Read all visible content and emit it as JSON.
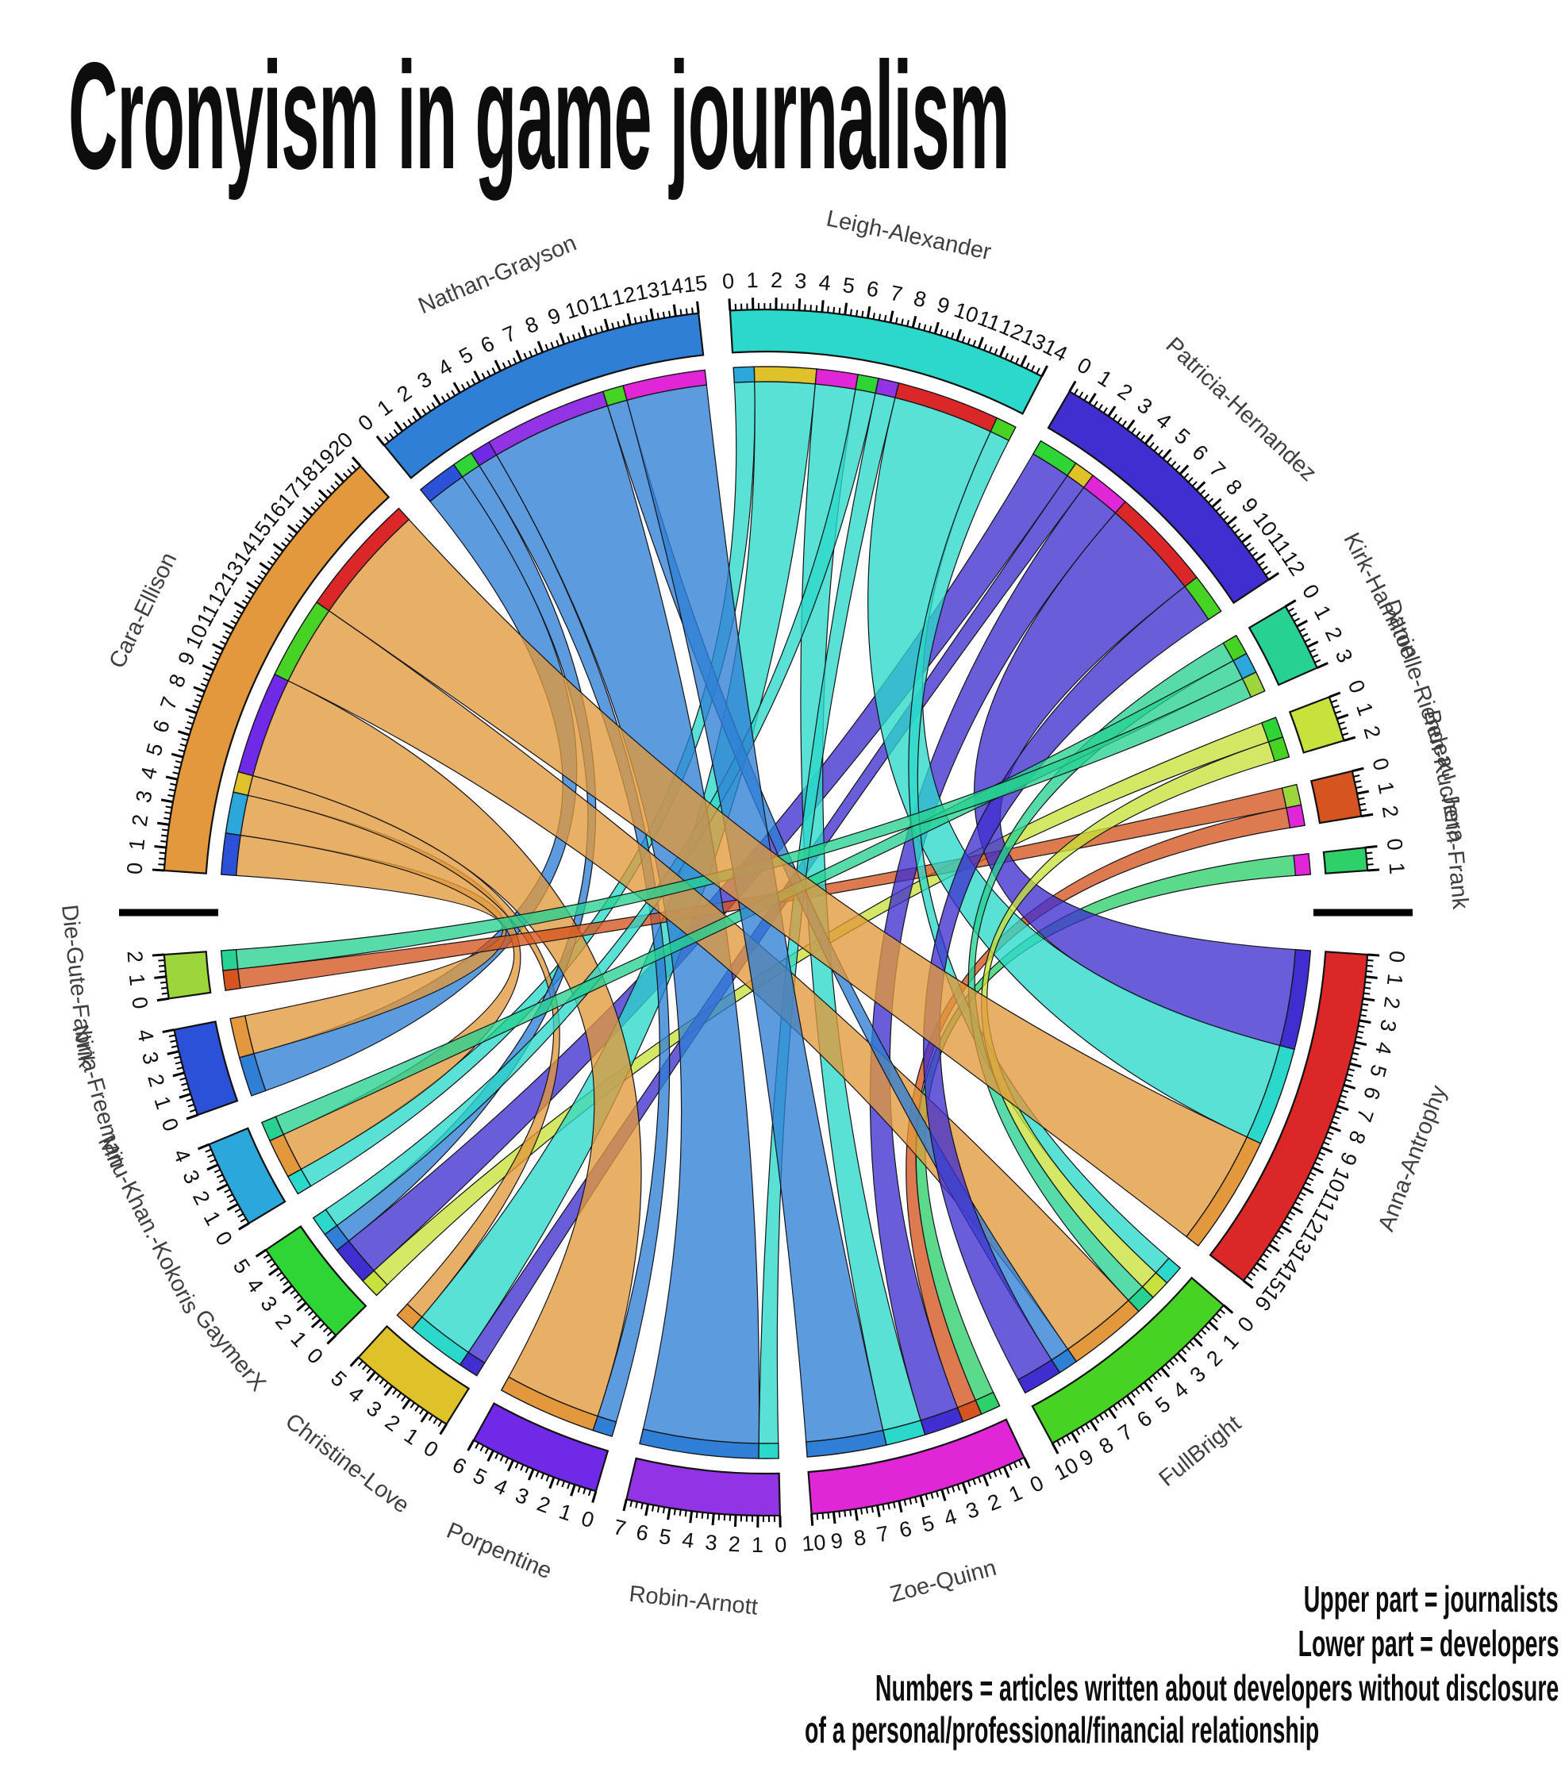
{
  "title": "Cronyism in game journalism",
  "legend": {
    "lines": [
      "Upper part = journalists",
      "Lower part = developers",
      "Numbers = articles written about developers without disclosure",
      "of a personal/professional/financial relationship"
    ]
  },
  "chart_data": {
    "type": "chord",
    "title": "Cronyism in game journalism",
    "units": "articles",
    "tick_interval": 1,
    "upper_part": "journalists",
    "lower_part": "developers",
    "groups": [
      {
        "id": "cara-ellison",
        "label": "Cara-Ellison",
        "role": "journalist",
        "color": "#E2983B",
        "total": 20
      },
      {
        "id": "nathan-grayson",
        "label": "Nathan-Grayson",
        "role": "journalist",
        "color": "#2F7FD6",
        "total": 15
      },
      {
        "id": "leigh-alexander",
        "label": "Leigh-Alexander",
        "role": "journalist",
        "color": "#2BD9CB",
        "total": 14
      },
      {
        "id": "patricia-hernandez",
        "label": "Patricia-Hernandez",
        "role": "journalist",
        "color": "#3F2FD0",
        "total": 12
      },
      {
        "id": "kirk-hamilton",
        "label": "Kirk-Hamilton",
        "role": "journalist",
        "color": "#27D191",
        "total": 3
      },
      {
        "id": "danielle-riendeau",
        "label": "Danielle-Riendeau",
        "role": "journalist",
        "color": "#C9E13B",
        "total": 2
      },
      {
        "id": "ben-kuchera",
        "label": "Ben-Kuchera",
        "role": "journalist",
        "color": "#D5541F",
        "total": 2
      },
      {
        "id": "jenn-frank",
        "label": "Jenn-Frank",
        "role": "journalist",
        "color": "#2ED06A",
        "total": 1
      },
      {
        "id": "anna-antrophy",
        "label": "Anna-Antrophy",
        "role": "developer",
        "color": "#DB2727",
        "total": 16
      },
      {
        "id": "fullbright",
        "label": "FullBright",
        "role": "developer",
        "color": "#47D324",
        "total": 10
      },
      {
        "id": "zoe-quinn",
        "label": "Zoe-Quinn",
        "role": "developer",
        "color": "#E026D6",
        "total": 10
      },
      {
        "id": "robin-arnott",
        "label": "Robin-Arnott",
        "role": "developer",
        "color": "#9333E6",
        "total": 7
      },
      {
        "id": "porpentine",
        "label": "Porpentine",
        "role": "developer",
        "color": "#7129E8",
        "total": 6
      },
      {
        "id": "christine-love",
        "label": "Christine-Love",
        "role": "developer",
        "color": "#DFC22A",
        "total": 5
      },
      {
        "id": "gaymerx",
        "label": "GaymerX",
        "role": "developer",
        "color": "#2FD435",
        "total": 5
      },
      {
        "id": "mitu-khan-kokoris",
        "label": "Mitu-Khan.-Kokoris",
        "role": "developer",
        "color": "#2BA7DC",
        "total": 4
      },
      {
        "id": "nina-freeman",
        "label": "Nina-Freeman",
        "role": "developer",
        "color": "#2C51D9",
        "total": 4
      },
      {
        "id": "die-gute-fabrik",
        "label": "Die-Gute-Fabrik",
        "role": "developer",
        "color": "#9CD63A",
        "total": 2
      }
    ],
    "flows": [
      {
        "source": "nathan-grayson",
        "target": "nina-freeman",
        "value": 2
      },
      {
        "source": "cara-ellison",
        "target": "nina-freeman",
        "value": 2
      },
      {
        "source": "leigh-alexander",
        "target": "mitu-khan-kokoris",
        "value": 1
      },
      {
        "source": "cara-ellison",
        "target": "mitu-khan-kokoris",
        "value": 2
      },
      {
        "source": "danielle-riendeau",
        "target": "gaymerx",
        "value": 1
      },
      {
        "source": "patricia-hernandez",
        "target": "gaymerx",
        "value": 2
      },
      {
        "source": "patricia-hernandez",
        "target": "christine-love",
        "value": 1
      },
      {
        "source": "leigh-alexander",
        "target": "christine-love",
        "value": 3
      },
      {
        "source": "cara-ellison",
        "target": "christine-love",
        "value": 1
      },
      {
        "source": "nathan-grayson",
        "target": "gaymerx",
        "value": 1
      },
      {
        "source": "nathan-grayson",
        "target": "porpentine",
        "value": 1
      },
      {
        "source": "cara-ellison",
        "target": "porpentine",
        "value": 5
      },
      {
        "source": "jenn-frank",
        "target": "zoe-quinn",
        "value": 1
      },
      {
        "source": "ben-kuchera",
        "target": "die-gute-fabrik",
        "value": 1
      },
      {
        "source": "ben-kuchera",
        "target": "zoe-quinn",
        "value": 1
      },
      {
        "source": "patricia-hernandez",
        "target": "zoe-quinn",
        "value": 2
      },
      {
        "source": "leigh-alexander",
        "target": "zoe-quinn",
        "value": 2
      },
      {
        "source": "leigh-alexander",
        "target": "gaymerx",
        "value": 1
      },
      {
        "source": "leigh-alexander",
        "target": "robin-arnott",
        "value": 1
      },
      {
        "source": "nathan-grayson",
        "target": "robin-arnott",
        "value": 6
      },
      {
        "source": "patricia-hernandez",
        "target": "anna-antrophy",
        "value": 5
      },
      {
        "source": "leigh-alexander",
        "target": "anna-antrophy",
        "value": 5
      },
      {
        "source": "leigh-alexander",
        "target": "fullbright",
        "value": 1
      },
      {
        "source": "danielle-riendeau",
        "target": "fullbright",
        "value": 1
      },
      {
        "source": "kirk-hamilton",
        "target": "fullbright",
        "value": 1
      },
      {
        "source": "cara-ellison",
        "target": "fullbright",
        "value": 4
      },
      {
        "source": "nathan-grayson",
        "target": "fullbright",
        "value": 1
      },
      {
        "source": "patricia-hernandez",
        "target": "fullbright",
        "value": 2
      },
      {
        "source": "kirk-hamilton",
        "target": "mitu-khan-kokoris",
        "value": 1
      },
      {
        "source": "kirk-hamilton",
        "target": "die-gute-fabrik",
        "value": 1
      },
      {
        "source": "nathan-grayson",
        "target": "zoe-quinn",
        "value": 4
      },
      {
        "source": "cara-ellison",
        "target": "anna-antrophy",
        "value": 6
      }
    ],
    "separators": [
      "left-horizontal-bar",
      "right-horizontal-bar"
    ]
  }
}
